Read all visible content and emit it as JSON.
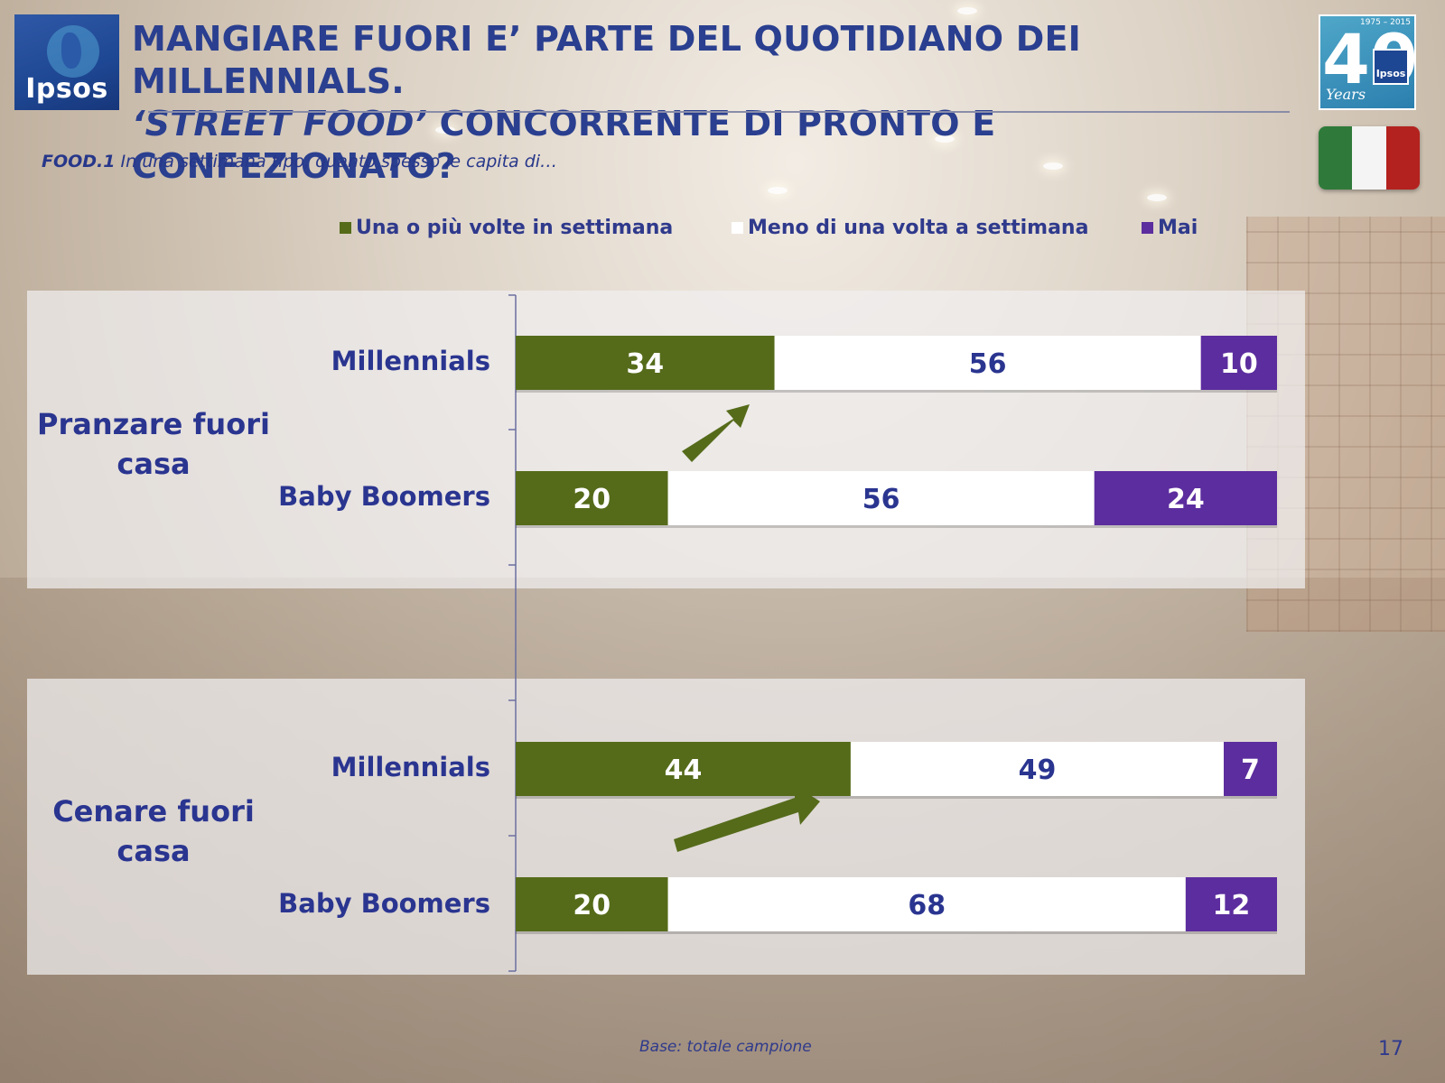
{
  "brand": {
    "logo_text": "Ipsos",
    "anniversary_number": "40",
    "anniversary_years": "1975 – 2015",
    "anniversary_word": "Years",
    "anniversary_mini": "Ipsos"
  },
  "title_line1": "MANGIARE FUORI E’ PARTE DEL QUOTIDIANO DEI MILLENNIALS.",
  "title_line2_italic": "‘STREET FOOD’",
  "title_line2_rest": " CONCORRENTE DI PRONTO E CONFEZIONATO?",
  "question_code": "FOOD.1",
  "question_text": " In una settimana tipo, quanto spesso le capita di…",
  "footer": "Base: totale campione",
  "page_number": "17",
  "colors": {
    "green": "#556b1a",
    "white": "#ffffff",
    "purple": "#5c2d9e",
    "label": "#2a3590",
    "flag_green": "#2f7a3a",
    "flag_white": "#f4f4f4",
    "flag_red": "#b3221f"
  },
  "chart_data": {
    "type": "bar",
    "orientation": "horizontal",
    "stacked": true,
    "units": "percent",
    "xlim": [
      0,
      100
    ],
    "legend_placement": "top",
    "grid": false,
    "series": [
      {
        "name": "Una o più volte in settimana",
        "color": "#556b1a"
      },
      {
        "name": "Meno di una volta a settimana",
        "color": "#ffffff"
      },
      {
        "name": "Mai",
        "color": "#5c2d9e"
      }
    ],
    "groups": [
      {
        "label": "Pranzare fuori casa",
        "rows": [
          {
            "label": "Millennials",
            "values": [
              34,
              56,
              10
            ]
          },
          {
            "label": "Baby Boomers",
            "values": [
              20,
              56,
              24
            ]
          }
        ]
      },
      {
        "label": "Cenare fuori casa",
        "rows": [
          {
            "label": "Millennials",
            "values": [
              44,
              49,
              7
            ]
          },
          {
            "label": "Baby Boomers",
            "values": [
              20,
              68,
              12
            ]
          }
        ]
      }
    ]
  }
}
